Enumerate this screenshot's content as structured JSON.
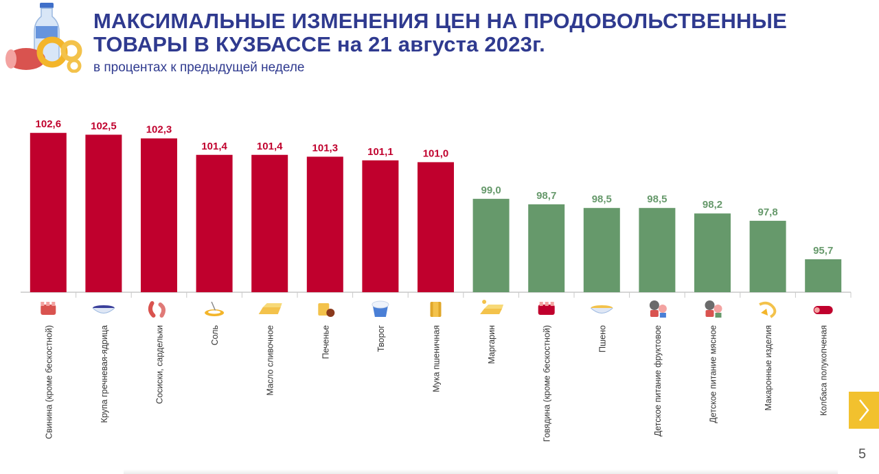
{
  "header": {
    "title_line1": "МАКСИМАЛЬНЫЕ ИЗМЕНЕНИЯ ЦЕН НА ПРОДОВОЛЬСТВЕННЫЕ",
    "title_line2": "ТОВАРЫ В КУЗБАССЕ на 21 августа 2023г.",
    "subtitle": "в процентах к предыдущей неделе"
  },
  "page_number": "5",
  "colors": {
    "increase": "#c0002d",
    "decrease": "#66996b",
    "title": "#2f3a8f",
    "next_button": "#f2c12e"
  },
  "chart_data": {
    "type": "bar",
    "title": "МАКСИМАЛЬНЫЕ ИЗМЕНЕНИЯ ЦЕН НА ПРОДОВОЛЬСТВЕННЫЕ ТОВАРЫ В КУЗБАССЕ на 21 августа 2023г.",
    "subtitle": "в процентах к предыдущей неделе",
    "categories": [
      "Свинина (кроме бескостной)",
      "Крупа гречневая-ядрица",
      "Сосиски, сардельки",
      "Соль",
      "Масло сливочное",
      "Печенье",
      "Творог",
      "Мука пшеничная",
      "Маргарин",
      "Говядина (кроме бескостной)",
      "Пшено",
      "Детское питание фруктовое",
      "Детское питание мясное",
      "Макаронные изделия",
      "Колбаса полукопченая"
    ],
    "values": [
      102.6,
      102.5,
      102.3,
      101.4,
      101.4,
      101.3,
      101.1,
      101.0,
      99.0,
      98.7,
      98.5,
      98.5,
      98.2,
      97.8,
      95.7
    ],
    "value_labels": [
      "102,6",
      "102,5",
      "102,3",
      "101,4",
      "101,4",
      "101,3",
      "101,1",
      "101,0",
      "99,0",
      "98,7",
      "98,5",
      "98,5",
      "98,2",
      "97,8",
      "95,7"
    ],
    "icons": [
      "pork-icon",
      "buckwheat-bowl-icon",
      "sausages-icon",
      "salt-spoon-icon",
      "butter-icon",
      "cookie-icon",
      "cottage-cheese-icon",
      "flour-bag-icon",
      "margarine-icon",
      "beef-icon",
      "millet-bowl-icon",
      "baby-food-fruit-icon",
      "baby-food-meat-icon",
      "pasta-icon",
      "smoked-sausage-icon"
    ],
    "ylim": [
      93.9,
      103.0
    ],
    "grid": false,
    "legend": "none"
  }
}
